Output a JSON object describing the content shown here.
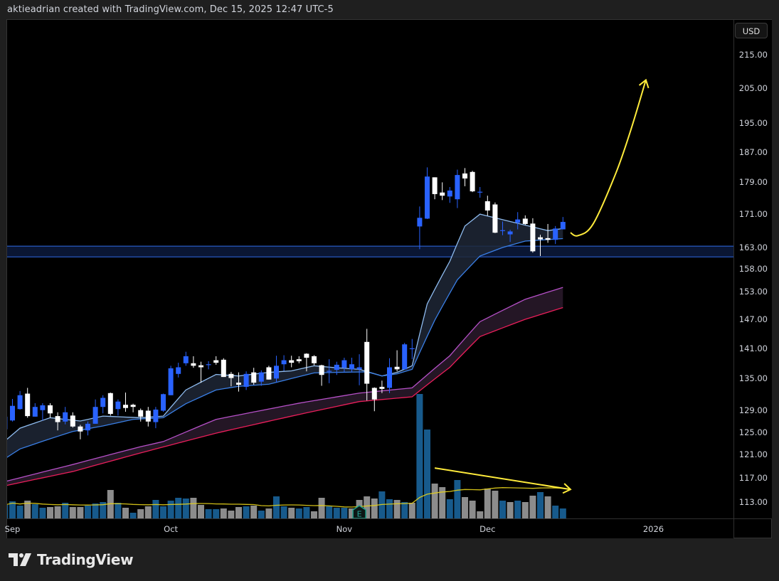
{
  "header": {
    "attribution": "aktieadrian created with TradingView.com, Dec 15, 2025 12:47 UTC-5"
  },
  "price_axis": {
    "currency_button": "USD"
  },
  "brand": {
    "logo_text": "TradingView"
  },
  "colors": {
    "background": "#000000",
    "frame": "#1f1f1f",
    "candle_up": "#2962ff",
    "candle_down": "#ffffff",
    "volume_up": "#175a8c",
    "volume_down": "#8c8c8c",
    "volume_ma": "#e6d21a",
    "fast_band_upper": "#8fbcf0",
    "fast_band_lower": "#3a7fe6",
    "fast_band_fill": "#1e2736",
    "slow_band_upper": "#b650c8",
    "slow_band_lower": "#ea1e5a",
    "slow_band_fill": "#2a1a2b",
    "zone_line": "#2f6be8",
    "zone_fill": "#0a1633",
    "drawing": "#ffeb3b",
    "earnings_marker": "#1f9e89"
  },
  "chart_data": {
    "type": "candlestick",
    "price_scale": "log",
    "ylim": [
      110.4,
      226.1
    ],
    "grid": false,
    "y_tick_labels": [
      "215.00",
      "205.00",
      "195.00",
      "187.00",
      "179.00",
      "171.00",
      "163.00",
      "158.00",
      "153.00",
      "147.00",
      "141.00",
      "135.00",
      "129.00",
      "125.00",
      "121.00",
      "117.00",
      "113.00"
    ],
    "x_tick_labels": [
      {
        "label": "Sep",
        "date": "2025-09-02"
      },
      {
        "label": "Oct",
        "date": "2025-10-01"
      },
      {
        "label": "Nov",
        "date": "2025-11-03"
      },
      {
        "label": "Dec",
        "date": "2025-12-01"
      },
      {
        "label": "2026",
        "date": "2026-01-02"
      }
    ],
    "candles_columns": [
      "date",
      "open",
      "high",
      "low",
      "close"
    ],
    "candles": [
      [
        "2025-08-29",
        125.5,
        128.3,
        125.0,
        127.8
      ],
      [
        "2025-09-02",
        127.1,
        131.1,
        126.9,
        129.8
      ],
      [
        "2025-09-03",
        129.2,
        132.6,
        129.1,
        131.8
      ],
      [
        "2025-09-04",
        132.1,
        133.2,
        127.6,
        127.9
      ],
      [
        "2025-09-05",
        127.8,
        130.3,
        127.8,
        129.6
      ],
      [
        "2025-09-08",
        129.0,
        130.3,
        127.1,
        129.9
      ],
      [
        "2025-09-09",
        129.9,
        130.3,
        127.6,
        128.4
      ],
      [
        "2025-09-10",
        127.9,
        128.6,
        125.3,
        126.8
      ],
      [
        "2025-09-11",
        126.9,
        129.6,
        126.4,
        128.6
      ],
      [
        "2025-09-12",
        128.0,
        128.6,
        125.8,
        126.0
      ],
      [
        "2025-09-15",
        126.0,
        126.3,
        123.7,
        125.1
      ],
      [
        "2025-09-16",
        125.3,
        126.9,
        124.4,
        126.5
      ],
      [
        "2025-09-17",
        126.5,
        131.0,
        126.5,
        129.6
      ],
      [
        "2025-09-18",
        129.6,
        131.8,
        128.4,
        131.3
      ],
      [
        "2025-09-19",
        132.2,
        132.3,
        128.0,
        128.3
      ],
      [
        "2025-09-22",
        129.2,
        131.0,
        128.0,
        130.6
      ],
      [
        "2025-09-23",
        130.0,
        132.3,
        128.7,
        129.4
      ],
      [
        "2025-09-24",
        130.0,
        130.2,
        128.6,
        129.6
      ],
      [
        "2025-09-25",
        129.0,
        129.3,
        126.9,
        127.8
      ],
      [
        "2025-09-26",
        128.9,
        129.6,
        126.0,
        126.9
      ],
      [
        "2025-09-29",
        126.8,
        129.6,
        125.7,
        129.1
      ],
      [
        "2025-09-30",
        128.9,
        132.1,
        128.7,
        132.0
      ],
      [
        "2025-10-01",
        131.8,
        137.5,
        131.8,
        137.0
      ],
      [
        "2025-10-02",
        135.9,
        138.1,
        135.2,
        137.2
      ],
      [
        "2025-10-03",
        138.0,
        140.3,
        137.5,
        139.4
      ],
      [
        "2025-10-06",
        138.0,
        139.4,
        137.1,
        137.5
      ],
      [
        "2025-10-07",
        137.6,
        138.3,
        134.2,
        137.2
      ],
      [
        "2025-10-08",
        137.7,
        138.4,
        136.8,
        137.8
      ],
      [
        "2025-10-09",
        138.6,
        139.4,
        137.7,
        138.1
      ],
      [
        "2025-10-10",
        138.7,
        139.0,
        135.3,
        135.3
      ],
      [
        "2025-10-13",
        135.9,
        136.3,
        133.5,
        135.1
      ],
      [
        "2025-10-14",
        134.2,
        136.2,
        132.5,
        133.8
      ],
      [
        "2025-10-15",
        133.4,
        136.4,
        132.8,
        135.9
      ],
      [
        "2025-10-16",
        136.2,
        137.1,
        133.8,
        134.2
      ],
      [
        "2025-10-17",
        134.4,
        136.6,
        133.6,
        136.2
      ],
      [
        "2025-10-20",
        137.2,
        137.5,
        134.8,
        134.8
      ],
      [
        "2025-10-21",
        135.0,
        139.5,
        134.2,
        137.5
      ],
      [
        "2025-10-22",
        137.8,
        139.6,
        136.5,
        138.6
      ],
      [
        "2025-10-23",
        138.6,
        139.5,
        137.2,
        138.1
      ],
      [
        "2025-10-24",
        138.8,
        139.4,
        138.0,
        138.4
      ],
      [
        "2025-10-27",
        139.9,
        140.0,
        136.4,
        139.1
      ],
      [
        "2025-10-28",
        139.4,
        139.6,
        137.6,
        138.0
      ],
      [
        "2025-10-29",
        137.6,
        137.7,
        133.6,
        135.7
      ],
      [
        "2025-10-30",
        136.4,
        138.8,
        134.1,
        136.5
      ],
      [
        "2025-10-31",
        136.7,
        138.3,
        135.7,
        137.7
      ],
      [
        "2025-11-03",
        137.1,
        139.1,
        136.2,
        138.6
      ],
      [
        "2025-11-04",
        136.8,
        139.1,
        136.2,
        137.8
      ],
      [
        "2025-11-05",
        136.8,
        139.8,
        133.7,
        137.2
      ],
      [
        "2025-11-06",
        142.3,
        145.0,
        130.8,
        134.0
      ],
      [
        "2025-11-07",
        133.2,
        133.3,
        128.8,
        131.0
      ],
      [
        "2025-11-10",
        133.4,
        134.6,
        132.2,
        133.0
      ],
      [
        "2025-11-11",
        133.2,
        139.0,
        132.2,
        137.2
      ],
      [
        "2025-11-12",
        137.3,
        140.6,
        136.4,
        136.8
      ],
      [
        "2025-11-13",
        136.8,
        142.1,
        136.7,
        141.8
      ],
      [
        "2025-11-14",
        140.9,
        142.9,
        138.8,
        141.0
      ],
      [
        "2025-11-17",
        168.0,
        172.9,
        162.6,
        170.1
      ],
      [
        "2025-11-18",
        169.9,
        182.9,
        169.8,
        180.5
      ],
      [
        "2025-11-19",
        180.3,
        180.3,
        174.7,
        176.0
      ],
      [
        "2025-11-20",
        176.4,
        179.0,
        174.5,
        175.6
      ],
      [
        "2025-11-21",
        175.4,
        177.8,
        173.8,
        176.9
      ],
      [
        "2025-11-24",
        174.7,
        182.3,
        172.5,
        180.9
      ],
      [
        "2025-11-25",
        181.3,
        182.7,
        178.0,
        180.0
      ],
      [
        "2025-11-26",
        181.7,
        182.0,
        176.5,
        176.7
      ],
      [
        "2025-11-28",
        176.5,
        177.8,
        175.1,
        176.6
      ],
      [
        "2025-12-01",
        174.2,
        175.6,
        170.6,
        171.9
      ],
      [
        "2025-12-02",
        173.4,
        173.9,
        166.4,
        166.5
      ],
      [
        "2025-12-03",
        167.0,
        169.2,
        165.9,
        167.1
      ],
      [
        "2025-12-04",
        166.1,
        167.2,
        164.3,
        166.8
      ],
      [
        "2025-12-05",
        168.9,
        171.5,
        167.3,
        169.7
      ],
      [
        "2025-12-08",
        169.9,
        170.7,
        168.4,
        168.6
      ],
      [
        "2025-12-09",
        168.7,
        170.0,
        161.8,
        162.1
      ],
      [
        "2025-12-10",
        165.4,
        166.0,
        161.0,
        164.9
      ],
      [
        "2025-12-11",
        165.2,
        168.6,
        164.1,
        164.8
      ],
      [
        "2025-12-12",
        164.8,
        168.1,
        163.8,
        167.5
      ],
      [
        "2025-12-15",
        167.3,
        170.3,
        167.3,
        169.1
      ]
    ],
    "volume_relative": [
      19,
      24,
      18,
      25,
      20,
      15,
      16,
      17,
      22,
      16,
      16,
      18,
      21,
      23,
      40,
      22,
      15,
      8,
      13,
      17,
      26,
      17,
      25,
      29,
      28,
      29,
      19,
      13,
      13,
      14,
      11,
      16,
      17,
      18,
      11,
      14,
      31,
      17,
      15,
      14,
      16,
      10,
      29,
      17,
      15,
      15,
      14,
      26,
      31,
      28,
      38,
      27,
      26,
      23,
      22,
      175,
      125,
      49,
      44,
      27,
      54,
      30,
      25,
      10,
      42,
      39,
      25,
      23,
      25,
      23,
      32,
      37,
      31,
      18,
      14
    ],
    "volume_direction": [
      "u",
      "u",
      "u",
      "d",
      "u",
      "u",
      "d",
      "d",
      "u",
      "d",
      "d",
      "u",
      "u",
      "u",
      "d",
      "u",
      "d",
      "u",
      "d",
      "d",
      "u",
      "u",
      "u",
      "u",
      "u",
      "d",
      "d",
      "u",
      "u",
      "d",
      "d",
      "d",
      "u",
      "d",
      "u",
      "d",
      "u",
      "u",
      "d",
      "u",
      "u",
      "d",
      "d",
      "u",
      "u",
      "u",
      "d",
      "d",
      "d",
      "d",
      "u",
      "u",
      "d",
      "u",
      "d",
      "u",
      "u",
      "d",
      "d",
      "u",
      "u",
      "d",
      "d",
      "d",
      "d",
      "d",
      "u",
      "d",
      "u",
      "d",
      "d",
      "u",
      "d",
      "u",
      "u"
    ],
    "volume_ma_period": 20,
    "fast_band": {
      "upper": [
        [
          "2025-08-29",
          123.4
        ],
        [
          "2025-09-03",
          125.7
        ],
        [
          "2025-09-09",
          127.6
        ],
        [
          "2025-09-15",
          127.0
        ],
        [
          "2025-09-18",
          127.9
        ],
        [
          "2025-09-25",
          127.6
        ],
        [
          "2025-09-30",
          127.9
        ],
        [
          "2025-10-03",
          132.8
        ],
        [
          "2025-10-09",
          135.8
        ],
        [
          "2025-10-14",
          135.5
        ],
        [
          "2025-10-20",
          136.2
        ],
        [
          "2025-10-23",
          136.5
        ],
        [
          "2025-10-28",
          137.5
        ],
        [
          "2025-10-31",
          137.1
        ],
        [
          "2025-11-05",
          136.8
        ],
        [
          "2025-11-10",
          135.5
        ],
        [
          "2025-11-12",
          136.2
        ],
        [
          "2025-11-14",
          137.5
        ],
        [
          "2025-11-18",
          150.3
        ],
        [
          "2025-11-21",
          159.8
        ],
        [
          "2025-11-25",
          168.1
        ],
        [
          "2025-11-28",
          171.0
        ],
        [
          "2025-12-04",
          169.2
        ],
        [
          "2025-12-11",
          167.0
        ],
        [
          "2025-12-15",
          167.5
        ]
      ],
      "lower": [
        [
          "2025-08-29",
          120.3
        ],
        [
          "2025-09-03",
          122.0
        ],
        [
          "2025-09-09",
          123.8
        ],
        [
          "2025-09-12",
          125.1
        ],
        [
          "2025-09-18",
          126.1
        ],
        [
          "2025-09-24",
          127.3
        ],
        [
          "2025-09-30",
          127.6
        ],
        [
          "2025-10-03",
          130.2
        ],
        [
          "2025-10-09",
          132.8
        ],
        [
          "2025-10-14",
          133.5
        ],
        [
          "2025-10-20",
          133.9
        ],
        [
          "2025-10-28",
          136.1
        ],
        [
          "2025-10-31",
          136.2
        ],
        [
          "2025-11-06",
          136.3
        ],
        [
          "2025-11-10",
          135.5
        ],
        [
          "2025-11-12",
          135.9
        ],
        [
          "2025-11-14",
          136.8
        ],
        [
          "2025-11-19",
          146.8
        ],
        [
          "2025-11-24",
          155.6
        ],
        [
          "2025-11-28",
          161.0
        ],
        [
          "2025-12-03",
          163.0
        ],
        [
          "2025-12-08",
          164.5
        ],
        [
          "2025-12-15",
          165.1
        ]
      ]
    },
    "slow_band": {
      "upper": [
        [
          "2025-08-29",
          116.4
        ],
        [
          "2025-09-12",
          119.3
        ],
        [
          "2025-09-25",
          122.4
        ],
        [
          "2025-09-30",
          123.3
        ],
        [
          "2025-10-09",
          127.3
        ],
        [
          "2025-10-24",
          130.3
        ],
        [
          "2025-11-05",
          132.2
        ],
        [
          "2025-11-14",
          133.2
        ],
        [
          "2025-11-21",
          139.5
        ],
        [
          "2025-11-28",
          146.5
        ],
        [
          "2025-12-08",
          151.3
        ],
        [
          "2025-12-15",
          153.9
        ]
      ],
      "lower": [
        [
          "2025-08-29",
          115.7
        ],
        [
          "2025-09-12",
          118.1
        ],
        [
          "2025-09-25",
          121.3
        ],
        [
          "2025-10-09",
          124.8
        ],
        [
          "2025-10-24",
          128.2
        ],
        [
          "2025-11-05",
          130.6
        ],
        [
          "2025-11-14",
          131.5
        ],
        [
          "2025-11-21",
          137.2
        ],
        [
          "2025-11-28",
          143.4
        ],
        [
          "2025-12-08",
          147.0
        ],
        [
          "2025-12-15",
          149.5
        ]
      ]
    },
    "horizontal_zone": {
      "top": 163.3,
      "bottom": 160.8
    },
    "earnings_marker": {
      "date": "2025-11-05",
      "label": "E"
    },
    "drawings": {
      "projection_curve": [
        [
          "2025-12-16",
          166.5
        ],
        [
          "2025-12-17",
          165.8
        ],
        [
          "2025-12-19",
          168.6
        ],
        [
          "2025-12-24",
          181.3
        ],
        [
          "2025-12-29",
          193.0
        ],
        [
          "2025-12-31",
          207.4
        ]
      ],
      "volume_trend_arrow": [
        [
          "2025-11-19",
          118.7
        ],
        [
          "2025-12-16",
          115.1
        ]
      ]
    }
  }
}
